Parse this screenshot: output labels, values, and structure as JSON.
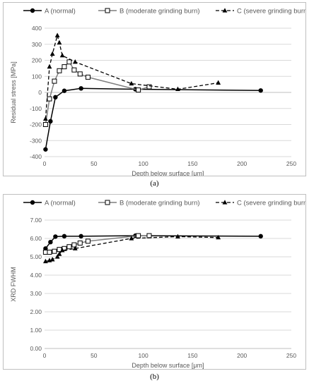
{
  "captions": [
    "(a)",
    "(b)"
  ],
  "legend_labels": [
    "A (normal)",
    "B (moderate grinding burn)",
    "C (severe grinding burn)"
  ],
  "colors": {
    "axis": "#bfbfbf",
    "grid": "#d9d9d9",
    "series": "#000000",
    "text": "#595959"
  },
  "chart_data": [
    {
      "type": "line",
      "xlabel": "Depth below surface [μm]",
      "ylabel": "Residual stress [MPa]",
      "xlim": [
        0,
        250
      ],
      "ylim": [
        -400,
        400
      ],
      "xticks": [
        0,
        50,
        100,
        150,
        200,
        250
      ],
      "yticks": [
        -400,
        -300,
        -200,
        -100,
        0,
        100,
        200,
        300,
        400
      ],
      "ytick_decimals": 0,
      "grid": "horizontal",
      "legend": "top",
      "series": [
        {
          "name": "A (normal)",
          "style": "solid",
          "marker": "circle-filled",
          "x": [
            1,
            6,
            11,
            20,
            37,
            92,
            219
          ],
          "y": [
            -355,
            -180,
            -30,
            10,
            25,
            20,
            12
          ]
        },
        {
          "name": "B (moderate grinding burn)",
          "style": "solid-gray",
          "marker": "square-open",
          "x": [
            1,
            5,
            10,
            15,
            20,
            25,
            30,
            36,
            44,
            95,
            106
          ],
          "y": [
            -200,
            -40,
            70,
            135,
            160,
            190,
            140,
            115,
            95,
            15,
            35
          ]
        },
        {
          "name": "C (severe grinding burn)",
          "style": "dashed",
          "marker": "triangle-filled",
          "x": [
            1,
            5,
            8,
            13,
            15,
            18,
            31,
            88,
            135,
            176
          ],
          "y": [
            -165,
            160,
            240,
            355,
            310,
            230,
            190,
            55,
            20,
            60
          ]
        }
      ]
    },
    {
      "type": "line",
      "xlabel": "Depth below surface [μm]",
      "ylabel": "XRD FWHM",
      "xlim": [
        0,
        250
      ],
      "ylim": [
        0,
        7
      ],
      "xticks": [
        0,
        50,
        100,
        150,
        200,
        250
      ],
      "yticks": [
        0,
        1,
        2,
        3,
        4,
        5,
        6,
        7
      ],
      "ytick_decimals": 2,
      "grid": "horizontal",
      "legend": "top",
      "series": [
        {
          "name": "A (normal)",
          "style": "solid",
          "marker": "circle-filled",
          "x": [
            1,
            6,
            11,
            20,
            37,
            92,
            219
          ],
          "y": [
            5.45,
            5.8,
            6.1,
            6.12,
            6.12,
            6.15,
            6.12
          ]
        },
        {
          "name": "B (moderate grinding burn)",
          "style": "solid-gray",
          "marker": "square-open",
          "x": [
            1,
            5,
            10,
            15,
            20,
            25,
            30,
            36,
            44,
            95,
            106
          ],
          "y": [
            5.25,
            5.25,
            5.3,
            5.4,
            5.45,
            5.55,
            5.65,
            5.75,
            5.85,
            6.15,
            6.15
          ]
        },
        {
          "name": "C (severe grinding burn)",
          "style": "dashed",
          "marker": "triangle-filled",
          "x": [
            1,
            5,
            8,
            13,
            15,
            18,
            31,
            88,
            135,
            176
          ],
          "y": [
            4.75,
            4.8,
            4.85,
            5.0,
            5.15,
            5.35,
            5.45,
            6.0,
            6.1,
            6.05
          ]
        }
      ]
    }
  ]
}
